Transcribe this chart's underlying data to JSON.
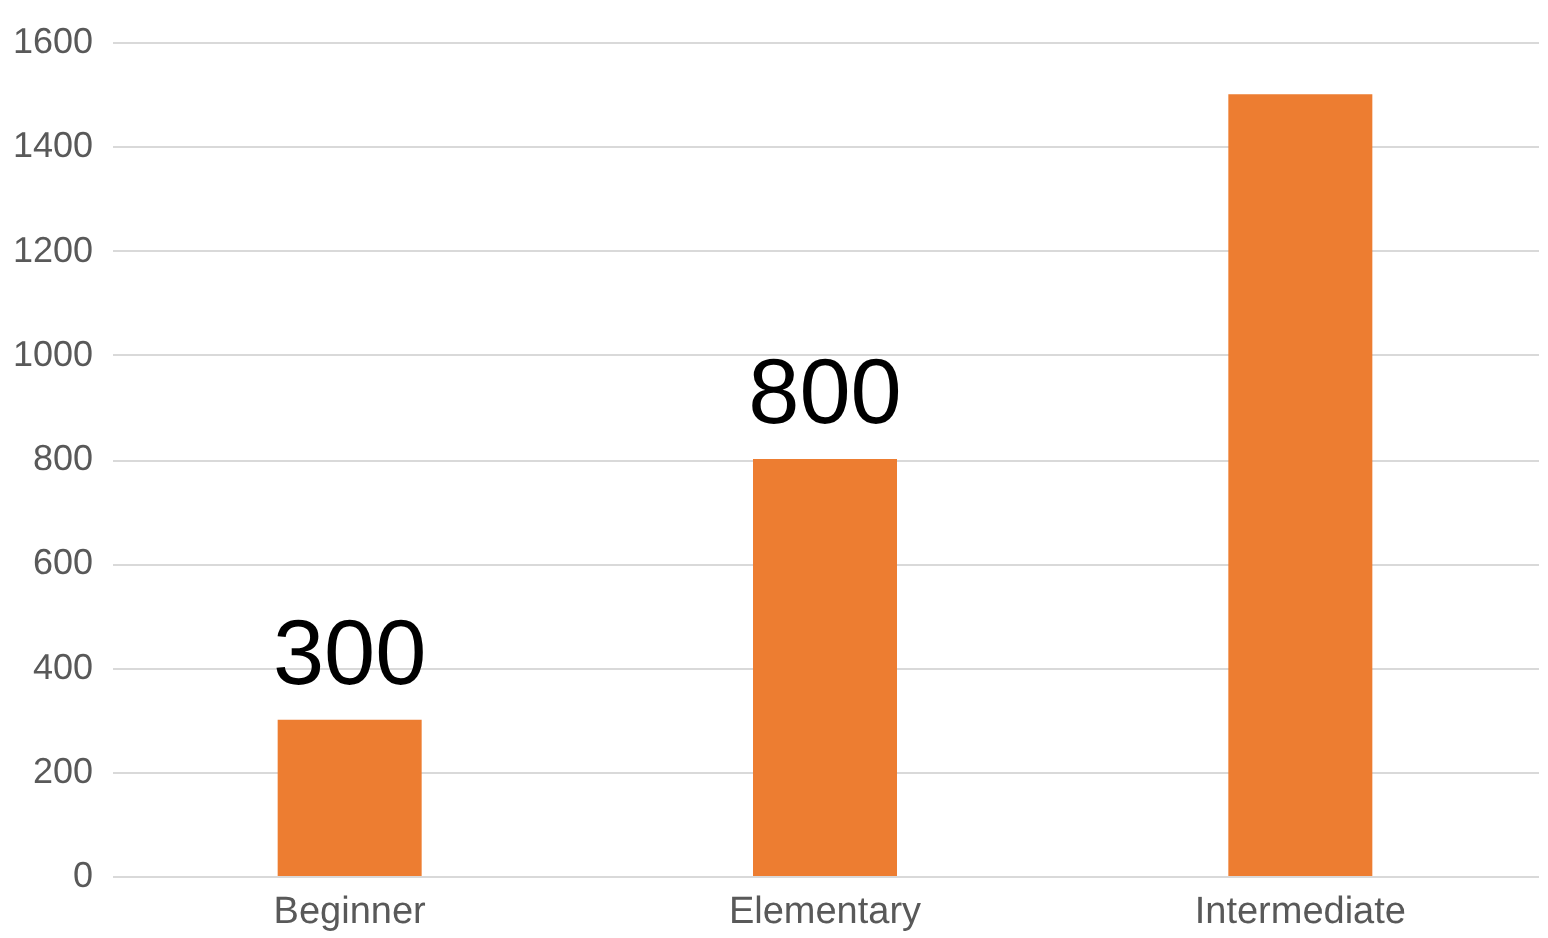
{
  "chart_data": {
    "type": "bar",
    "categories": [
      "Beginner",
      "Elementary",
      "Intermediate"
    ],
    "values": [
      300,
      800,
      1500
    ],
    "color": "#ed7d31",
    "value_labels": [
      "300",
      "800",
      null
    ],
    "ylim": [
      0,
      1600
    ],
    "yticks": [
      0,
      200,
      400,
      600,
      800,
      1000,
      1200,
      1400,
      1600
    ],
    "grid": "y"
  }
}
